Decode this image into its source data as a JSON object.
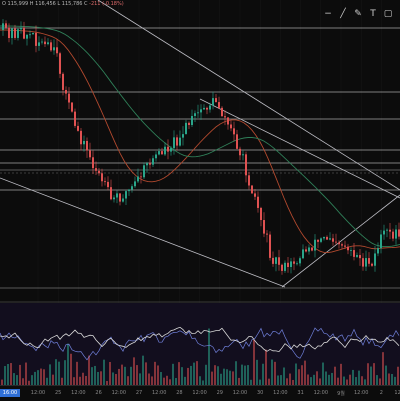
{
  "header": {
    "ohlc_text": "O 115,999 H 116,456 L 115,786 C",
    "change_text": "-211 (-0.18%)"
  },
  "toolbar": {
    "tools": [
      {
        "name": "minus-icon",
        "glyph": "−"
      },
      {
        "name": "trend-line-icon",
        "glyph": "╱"
      },
      {
        "name": "pencil-icon",
        "glyph": "✎"
      },
      {
        "name": "text-tool-icon",
        "glyph": "T"
      },
      {
        "name": "frame-icon",
        "glyph": "▢"
      }
    ]
  },
  "x_axis": {
    "current_label": "16:00",
    "labels": [
      "12:00",
      "25",
      "12:00",
      "26",
      "12:00",
      "27",
      "12:00",
      "28",
      "12:00",
      "29",
      "12:00",
      "30",
      "12:00",
      "31",
      "12:00",
      "9월",
      "12:00",
      "2",
      "12:00"
    ]
  },
  "colors": {
    "background": "#0c0c0c",
    "up_candle": "#2aa58a",
    "down_candle": "#e05252",
    "ma_green": "#2f7f58",
    "ma_red": "#b2492e",
    "trend_line": "#bdbdc4",
    "level_line": "#d9d9d9",
    "rsi_white": "#d9d9d9",
    "rsi_blue": "#6f7fd9",
    "axis_badge": "#2f6fd6"
  }
}
